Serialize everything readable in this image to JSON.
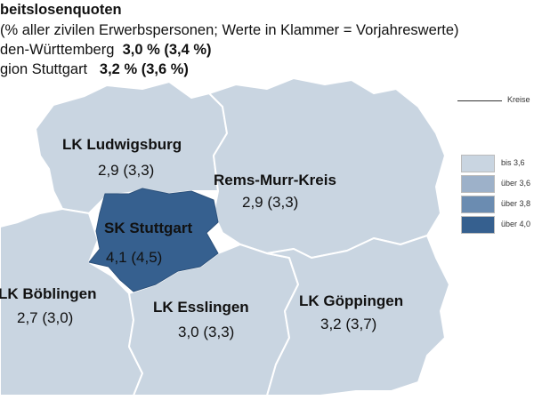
{
  "header": {
    "title": "beitslosenquoten",
    "subtitle": "% aller zivilen Erwerbspersonen; Werte in Klammer = Vorjahreswerte)",
    "bw_label": "den-Württemberg",
    "bw_value": "3,0 % (3,4 %)",
    "region_label": "gion Stuttgart",
    "region_value": "3,2 % (3,6 %)"
  },
  "legend": {
    "line_label": "Kreise",
    "classes": [
      {
        "label": "bis 3,6",
        "color": "#c9d5e1"
      },
      {
        "label": "über 3,6",
        "color": "#9db1c9"
      },
      {
        "label": "über 3,8",
        "color": "#6b8cb1"
      },
      {
        "label": "über 4,0",
        "color": "#36608f"
      }
    ]
  },
  "regions": [
    {
      "name": "LK Ludwigsburg",
      "value": "2,9 (3,3)",
      "color": "#c9d5e1"
    },
    {
      "name": "Rems-Murr-Kreis",
      "value": "2,9 (3,3)",
      "color": "#c9d5e1"
    },
    {
      "name": "SK Stuttgart",
      "value": "4,1 (4,5)",
      "color": "#36608f"
    },
    {
      "name": "LK Böblingen",
      "value": "2,7 (3,0)",
      "color": "#c9d5e1"
    },
    {
      "name": "LK Esslingen",
      "value": "3,0 (3,3)",
      "color": "#c9d5e1"
    },
    {
      "name": "LK Göppingen",
      "value": "3,2 (3,7)",
      "color": "#c9d5e1"
    }
  ]
}
